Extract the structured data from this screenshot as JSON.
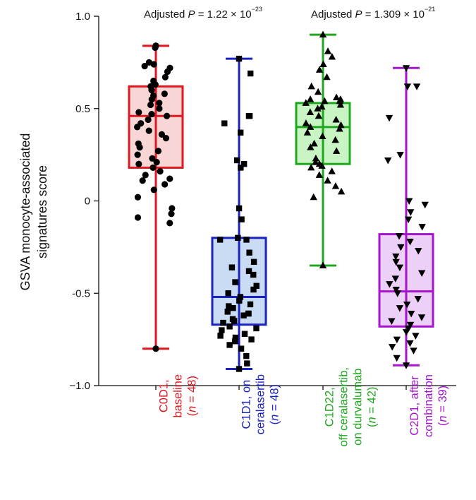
{
  "chart_data": {
    "type": "box",
    "ylabel_line1": "GSVA monocyte-associated",
    "ylabel_line2": "signatures score",
    "ylim": [
      -1.0,
      1.0
    ],
    "yticks": [
      {
        "value": 1.0,
        "label": "1.0"
      },
      {
        "value": 0.5,
        "label": "0.5"
      },
      {
        "value": 0,
        "label": "0"
      },
      {
        "value": -0.5,
        "label": "-0.5"
      },
      {
        "value": -1.0,
        "label": "−1.0"
      }
    ],
    "annotations": [
      {
        "prefix": "Adjusted ",
        "p": "P",
        "mid": " = 1.22 × 10",
        "exp": "−23"
      },
      {
        "prefix": "Adjusted ",
        "p": "P",
        "mid": " = 1.309 × 10",
        "exp": "−21"
      }
    ],
    "groups": [
      {
        "name": "C0D1, baseline",
        "lines": [
          "C0D1,",
          "baseline"
        ],
        "n_label": "(n = 48)",
        "color": "#e0171f",
        "fill": "#f9d6d6",
        "marker": "circle",
        "whisker_low": -0.8,
        "q1": 0.18,
        "median": 0.46,
        "q3": 0.62,
        "whisker_high": 0.84,
        "points": [
          0.84,
          0.84,
          0.83,
          0.75,
          0.74,
          0.73,
          0.72,
          0.7,
          0.67,
          0.65,
          0.63,
          0.62,
          0.6,
          0.58,
          0.57,
          0.55,
          0.53,
          0.52,
          0.5,
          0.48,
          0.47,
          0.46,
          0.44,
          0.42,
          0.4,
          0.38,
          0.36,
          0.34,
          0.31,
          0.29,
          0.27,
          0.25,
          0.23,
          0.21,
          0.2,
          0.18,
          0.16,
          0.14,
          0.12,
          0.11,
          0.09,
          0.06,
          0.02,
          -0.04,
          -0.07,
          -0.09,
          -0.12,
          -0.8
        ]
      },
      {
        "name": "C1D1, on ceralasertib",
        "lines": [
          "C1D1, on",
          "ceralasertib"
        ],
        "n_label": "(n = 48)",
        "color": "#1a22c4",
        "fill": "#c9dcf3",
        "marker": "square",
        "whisker_low": -0.91,
        "q1": -0.67,
        "median": -0.52,
        "q3": -0.2,
        "whisker_high": 0.77,
        "points": [
          0.77,
          0.69,
          0.46,
          0.46,
          0.42,
          0.37,
          0.22,
          0.2,
          0.18,
          -0.04,
          -0.1,
          -0.2,
          -0.21,
          -0.21,
          -0.28,
          -0.33,
          -0.36,
          -0.38,
          -0.4,
          -0.44,
          -0.46,
          -0.48,
          -0.5,
          -0.52,
          -0.54,
          -0.56,
          -0.57,
          -0.58,
          -0.6,
          -0.61,
          -0.61,
          -0.62,
          -0.64,
          -0.65,
          -0.66,
          -0.68,
          -0.69,
          -0.7,
          -0.72,
          -0.73,
          -0.74,
          -0.75,
          -0.76,
          -0.78,
          -0.8,
          -0.84,
          -0.88,
          -0.91
        ]
      },
      {
        "name": "C1D22, off ceralasertib, on durvalumab",
        "lines": [
          "C1D22,",
          "off ceralasertib,",
          "on durvalumab"
        ],
        "n_label": "(n = 42)",
        "color": "#1fa81f",
        "fill": "#c9f5c4",
        "marker": "triangle-up",
        "whisker_low": -0.35,
        "q1": 0.2,
        "median": 0.4,
        "q3": 0.53,
        "whisker_high": 0.9,
        "points": [
          0.9,
          0.81,
          0.78,
          0.74,
          0.71,
          0.67,
          0.62,
          0.59,
          0.56,
          0.55,
          0.55,
          0.54,
          0.54,
          0.53,
          0.52,
          0.51,
          0.5,
          0.48,
          0.46,
          0.44,
          0.42,
          0.41,
          0.4,
          0.39,
          0.37,
          0.35,
          0.33,
          0.31,
          0.29,
          0.27,
          0.23,
          0.21,
          0.2,
          0.19,
          0.18,
          0.16,
          0.14,
          0.11,
          0.08,
          0.05,
          0.02,
          -0.35
        ]
      },
      {
        "name": "C2D1, after combination",
        "lines": [
          "C2D1, after",
          "combination"
        ],
        "n_label": "(n = 39)",
        "color": "#a415cd",
        "fill": "#ecd0f7",
        "marker": "triangle-down",
        "whisker_low": -0.89,
        "q1": -0.68,
        "median": -0.49,
        "q3": -0.18,
        "whisker_high": 0.72,
        "points": [
          0.72,
          0.62,
          0.62,
          0.45,
          0.25,
          0.22,
          -0.0,
          -0.02,
          -0.06,
          -0.1,
          -0.14,
          -0.19,
          -0.22,
          -0.25,
          -0.27,
          -0.3,
          -0.33,
          -0.36,
          -0.39,
          -0.42,
          -0.45,
          -0.48,
          -0.5,
          -0.53,
          -0.56,
          -0.58,
          -0.61,
          -0.63,
          -0.65,
          -0.67,
          -0.69,
          -0.71,
          -0.73,
          -0.75,
          -0.77,
          -0.79,
          -0.81,
          -0.85,
          -0.89
        ]
      }
    ]
  }
}
